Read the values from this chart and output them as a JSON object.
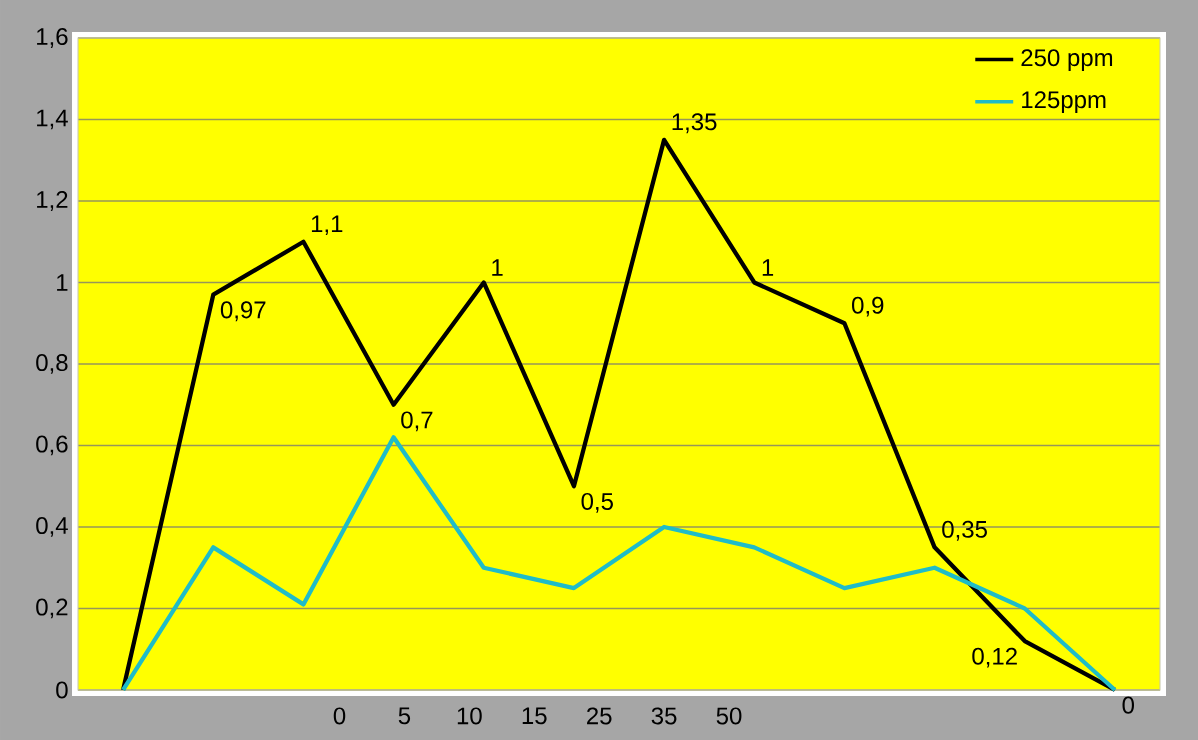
{
  "chart_data": {
    "type": "line",
    "categories": [
      null,
      null,
      null,
      null,
      null,
      null,
      null,
      null,
      null,
      null,
      null,
      null
    ],
    "ylim": [
      0,
      1.6
    ],
    "yticks": [
      0,
      {
        "value": 0.2,
        "label": "0,2"
      },
      {
        "value": 0.4,
        "label": "0,4"
      },
      {
        "value": 0.6,
        "label": "0,6"
      },
      {
        "value": 0.8,
        "label": "0,8"
      },
      1,
      {
        "value": 1.2,
        "label": "1,2"
      },
      {
        "value": 1.4,
        "label": "1,4"
      },
      {
        "value": 1.6,
        "label": "1,6"
      }
    ],
    "series": [
      {
        "name": "250 ppm",
        "color": "#000000",
        "values": [
          0,
          0.97,
          1.1,
          0.7,
          1,
          0.5,
          1.35,
          1,
          0.9,
          0.35,
          0.12,
          0
        ],
        "value_labels": [
          null,
          "0,97",
          "1,1",
          "0,7",
          "1",
          "0,5",
          "1,35",
          "1",
          "0,9",
          "0,35",
          "0,12",
          "0"
        ]
      },
      {
        "name": "125ppm",
        "color": "#1fbcc8",
        "values": [
          0,
          0.35,
          0.21,
          0.62,
          0.3,
          0.25,
          0.4,
          0.35,
          0.25,
          0.3,
          0.2,
          0
        ]
      }
    ],
    "annotations": [
      "0",
      "5",
      "10",
      "15",
      "25",
      "35",
      "50"
    ],
    "grid": "y",
    "legend": "top right",
    "marker": "none",
    "line_style": "solid"
  }
}
